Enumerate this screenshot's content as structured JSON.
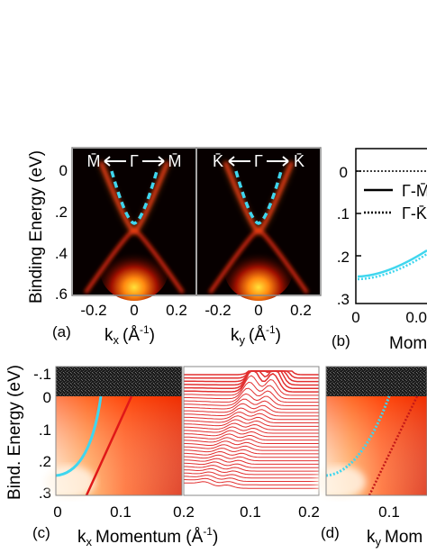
{
  "panel_a": {
    "label": "(a)",
    "ylabel": "Binding Energy (eV)",
    "yticks": [
      "0",
      ".2",
      ".4",
      ".6"
    ],
    "left": {
      "direction_left": "M̄",
      "direction_center": "Γ",
      "direction_right": "M̄",
      "xlabel_main": "k",
      "xlabel_sub": "x",
      "xlabel_unit": "(Å",
      "xlabel_sup": "-1",
      "xlabel_close": ")",
      "xticks": [
        "-0.2",
        "0",
        "0.2"
      ]
    },
    "right": {
      "direction_left": "K̄",
      "direction_center": "Γ",
      "direction_right": "K̄",
      "xlabel_main": "k",
      "xlabel_sub": "y",
      "xlabel_unit": "(Å",
      "xlabel_sup": "-1",
      "xlabel_close": ")",
      "xticks": [
        "-0.2",
        "0",
        "0.2"
      ]
    }
  },
  "panel_b": {
    "label": "(b)",
    "yticks": [
      "0",
      ".1",
      ".2",
      ".3"
    ],
    "xticks": [
      "0",
      "0.0"
    ],
    "xlabel": "Mom",
    "legend": [
      {
        "label": "Γ-M̄",
        "style": "solid"
      },
      {
        "label": "Γ-K̄",
        "style": "dotted"
      }
    ]
  },
  "panel_c": {
    "label": "(c)",
    "ylabel": "Bind. Energy (eV)",
    "yticks": [
      "-.1",
      "0",
      ".1",
      ".2",
      ".3"
    ],
    "xticks": [
      "0",
      "0.1",
      "0.2"
    ],
    "xticks_mdc": [
      "0.1",
      "0.2"
    ],
    "xlabel_main": "k",
    "xlabel_sub": "x",
    "xlabel_rest": "Momentum (Å",
    "xlabel_sup": "-1",
    "xlabel_close": ")"
  },
  "panel_d": {
    "label": "(d)",
    "xticks": [
      "0.1"
    ],
    "xlabel_main": "k",
    "xlabel_sub": "y",
    "xlabel_rest": "Mom"
  },
  "colors": {
    "cyan": "#3fd6ee",
    "red": "#e01818",
    "mdc": "#e23030"
  }
}
